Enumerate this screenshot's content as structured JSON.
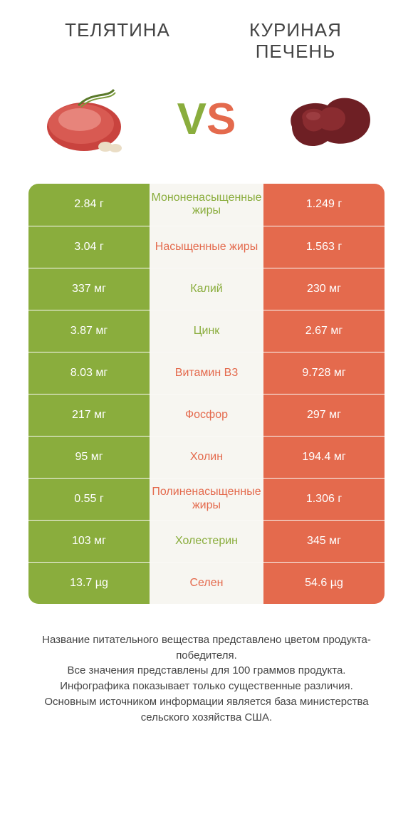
{
  "colors": {
    "green": "#8aad3d",
    "orange": "#e46a4d",
    "row_bg": "#f7f6f1",
    "text": "#444444"
  },
  "header": {
    "left_title": "ТЕЛЯТИНА",
    "right_title": "КУРИНАЯ\nПЕЧЕНЬ"
  },
  "vs": {
    "v": "V",
    "s": "S"
  },
  "rows": [
    {
      "left": "2.84 г",
      "label": "Мононенасыщенные жиры",
      "right": "1.249 г",
      "winner": "left"
    },
    {
      "left": "3.04 г",
      "label": "Насыщенные жиры",
      "right": "1.563 г",
      "winner": "right"
    },
    {
      "left": "337 мг",
      "label": "Калий",
      "right": "230 мг",
      "winner": "left"
    },
    {
      "left": "3.87 мг",
      "label": "Цинк",
      "right": "2.67 мг",
      "winner": "left"
    },
    {
      "left": "8.03 мг",
      "label": "Витамин B3",
      "right": "9.728 мг",
      "winner": "right"
    },
    {
      "left": "217 мг",
      "label": "Фосфор",
      "right": "297 мг",
      "winner": "right"
    },
    {
      "left": "95 мг",
      "label": "Холин",
      "right": "194.4 мг",
      "winner": "right"
    },
    {
      "left": "0.55 г",
      "label": "Полиненасыщенные жиры",
      "right": "1.306 г",
      "winner": "right"
    },
    {
      "left": "103 мг",
      "label": "Холестерин",
      "right": "345 мг",
      "winner": "left"
    },
    {
      "left": "13.7 µg",
      "label": "Селен",
      "right": "54.6 µg",
      "winner": "right"
    }
  ],
  "footnote": {
    "l1": "Название питательного вещества представлено цветом продукта-победителя.",
    "l2": "Все значения представлены для 100 граммов продукта.",
    "l3": "Инфографика показывает только существенные различия.",
    "l4": "Основным источником информации является база министерства сельского хозяйства США."
  }
}
